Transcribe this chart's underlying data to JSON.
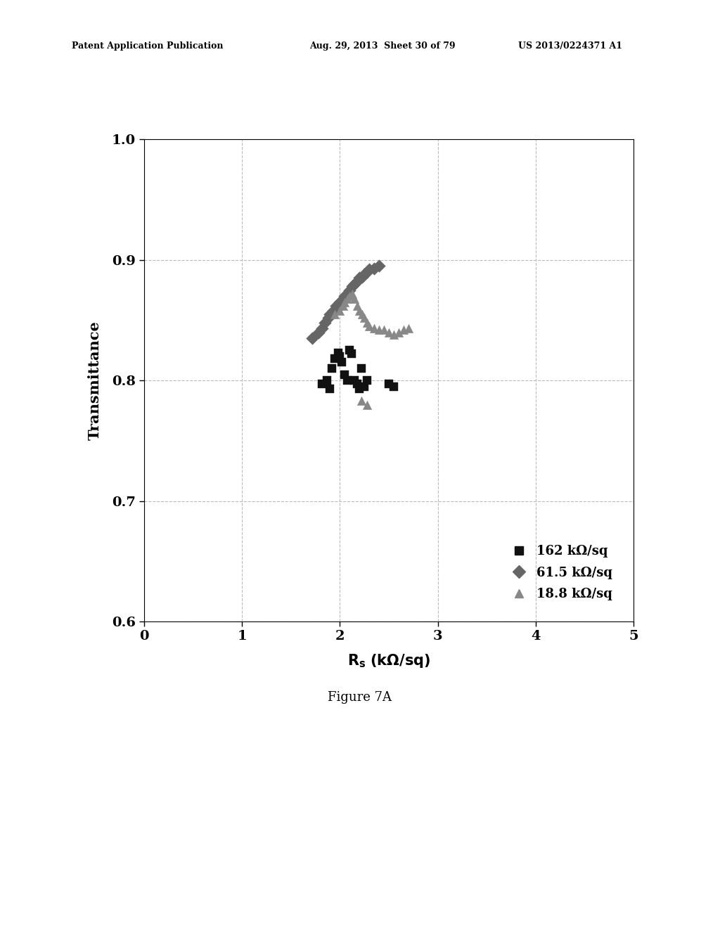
{
  "title_header_left": "Patent Application Publication",
  "title_header_mid": "Aug. 29, 2013  Sheet 30 of 79",
  "title_header_right": "US 2013/0224371 A1",
  "figure_label": "Figure 7A",
  "xlabel": "R_s (kΩ/sq)",
  "ylabel": "Transmittance",
  "xlim": [
    0,
    5
  ],
  "ylim": [
    0.6,
    1.0
  ],
  "xticks": [
    0,
    1,
    2,
    3,
    4,
    5
  ],
  "yticks": [
    0.6,
    0.7,
    0.8,
    0.9,
    1.0
  ],
  "background_color": "#ffffff",
  "grid_color": "#bbbbbb",
  "series": [
    {
      "label": "162 kΩ/sq",
      "color": "#111111",
      "marker": "s",
      "markersize": 8,
      "x": [
        1.82,
        1.87,
        1.9,
        1.92,
        1.95,
        1.98,
        2.0,
        2.02,
        2.05,
        2.08,
        2.1,
        2.12,
        2.15,
        2.18,
        2.2,
        2.22,
        2.25,
        2.28,
        2.5,
        2.55
      ],
      "y": [
        0.797,
        0.8,
        0.793,
        0.81,
        0.818,
        0.823,
        0.82,
        0.815,
        0.805,
        0.8,
        0.825,
        0.822,
        0.8,
        0.797,
        0.793,
        0.81,
        0.795,
        0.8,
        0.797,
        0.795
      ]
    },
    {
      "label": "61.5 kΩ/sq",
      "color": "#666666",
      "marker": "D",
      "markersize": 9,
      "x": [
        1.72,
        1.78,
        1.82,
        1.85,
        1.88,
        1.9,
        1.93,
        1.96,
        1.98,
        2.0,
        2.03,
        2.05,
        2.08,
        2.1,
        2.13,
        2.15,
        2.18,
        2.2,
        2.23,
        2.25,
        2.28,
        2.3,
        2.35,
        2.4
      ],
      "y": [
        0.835,
        0.84,
        0.843,
        0.848,
        0.852,
        0.855,
        0.858,
        0.862,
        0.86,
        0.865,
        0.868,
        0.87,
        0.872,
        0.875,
        0.878,
        0.88,
        0.882,
        0.885,
        0.886,
        0.888,
        0.89,
        0.892,
        0.893,
        0.895
      ]
    },
    {
      "label": "18.8 kΩ/sq",
      "color": "#888888",
      "marker": "^",
      "markersize": 9,
      "x": [
        1.95,
        2.0,
        2.03,
        2.05,
        2.08,
        2.1,
        2.13,
        2.15,
        2.18,
        2.2,
        2.23,
        2.25,
        2.28,
        2.3,
        2.35,
        2.4,
        2.45,
        2.5,
        2.55,
        2.6,
        2.65,
        2.7,
        2.22,
        2.28
      ],
      "y": [
        0.855,
        0.858,
        0.862,
        0.865,
        0.868,
        0.87,
        0.872,
        0.868,
        0.862,
        0.858,
        0.855,
        0.852,
        0.848,
        0.845,
        0.843,
        0.842,
        0.842,
        0.84,
        0.838,
        0.84,
        0.842,
        0.843,
        0.783,
        0.78
      ]
    }
  ]
}
